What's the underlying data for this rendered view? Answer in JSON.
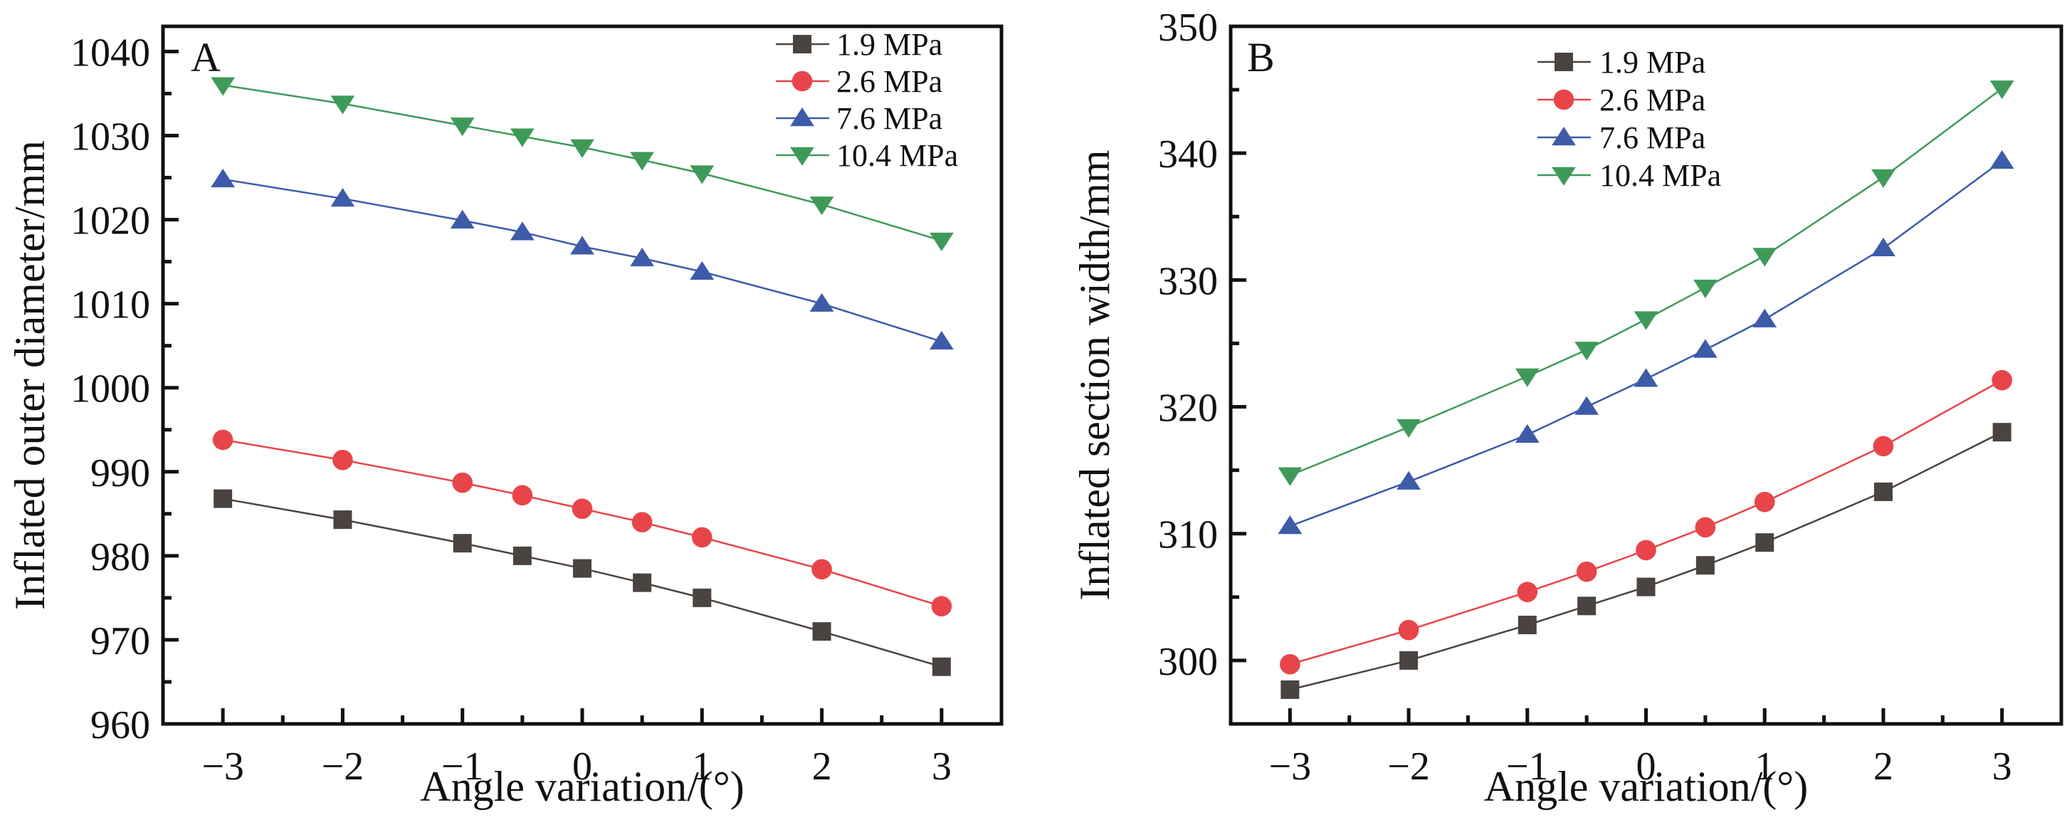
{
  "chart_data": [
    {
      "type": "line",
      "panel_label": "A",
      "title": "",
      "xlabel": "Angle variation/(°)",
      "ylabel": "Inflated outer diameter/mm",
      "x": [
        -3,
        -2,
        -1,
        -0.5,
        0,
        0.5,
        1,
        2,
        3
      ],
      "xlim": [
        -3.5,
        3.5
      ],
      "ylim": [
        960,
        1043
      ],
      "xticks": [
        -3,
        -2,
        -1,
        0,
        1,
        2,
        3
      ],
      "xtick_labels": [
        "−3",
        "−2",
        "−1",
        "0",
        "1",
        "2",
        "3"
      ],
      "yticks": [
        960,
        970,
        980,
        990,
        1000,
        1010,
        1020,
        1030,
        1040
      ],
      "ytick_labels": [
        "960",
        "970",
        "980",
        "990",
        "1000",
        "1010",
        "1020",
        "1030",
        "1040"
      ],
      "grid": false,
      "legend_position": "top-right",
      "series": [
        {
          "name": "1.9 MPa",
          "marker": "square",
          "color": "#4a4340",
          "values": [
            986.8,
            984.3,
            981.5,
            980.0,
            978.5,
            976.8,
            975.0,
            971.0,
            966.8
          ]
        },
        {
          "name": "2.6 MPa",
          "marker": "circle",
          "color": "#e8454a",
          "values": [
            993.8,
            991.4,
            988.7,
            987.2,
            985.6,
            984.0,
            982.2,
            978.4,
            974.0
          ]
        },
        {
          "name": "7.6 MPa",
          "marker": "triangle-up",
          "color": "#3d5ba8",
          "values": [
            1024.8,
            1022.5,
            1019.9,
            1018.5,
            1016.8,
            1015.4,
            1013.8,
            1010.0,
            1005.5
          ]
        },
        {
          "name": "10.4 MPa",
          "marker": "triangle-down",
          "color": "#3f9a5a",
          "values": [
            1036.0,
            1033.8,
            1031.2,
            1029.9,
            1028.6,
            1027.1,
            1025.5,
            1021.8,
            1017.5
          ]
        }
      ]
    },
    {
      "type": "line",
      "panel_label": "B",
      "title": "",
      "xlabel": "Angle variation/(°)",
      "ylabel": "Inflated section width/mm",
      "x": [
        -3,
        -2,
        -1,
        -0.5,
        0,
        0.5,
        1,
        2,
        3
      ],
      "xlim": [
        -3.5,
        3.5
      ],
      "ylim": [
        295,
        350
      ],
      "xticks": [
        -3,
        -2,
        -1,
        0,
        1,
        2,
        3
      ],
      "xtick_labels": [
        "−3",
        "−2",
        "−1",
        "0",
        "1",
        "2",
        "3"
      ],
      "yticks": [
        300,
        310,
        320,
        330,
        340,
        350
      ],
      "ytick_labels": [
        "300",
        "310",
        "320",
        "330",
        "340",
        "350"
      ],
      "grid": false,
      "legend_position": "top-center",
      "series": [
        {
          "name": "1.9 MPa",
          "marker": "square",
          "color": "#4a4340",
          "values": [
            297.7,
            300.0,
            302.8,
            304.3,
            305.8,
            307.5,
            309.3,
            313.3,
            318.0
          ]
        },
        {
          "name": "2.6 MPa",
          "marker": "circle",
          "color": "#e8454a",
          "values": [
            299.7,
            302.4,
            305.4,
            307.0,
            308.7,
            310.5,
            312.5,
            316.9,
            322.1
          ]
        },
        {
          "name": "7.6 MPa",
          "marker": "triangle-up",
          "color": "#3d5ba8",
          "values": [
            310.6,
            314.1,
            317.8,
            320.0,
            322.2,
            324.5,
            326.9,
            332.5,
            339.4
          ]
        },
        {
          "name": "10.4 MPa",
          "marker": "triangle-down",
          "color": "#3f9a5a",
          "values": [
            314.6,
            318.4,
            322.4,
            324.5,
            326.9,
            329.4,
            331.9,
            338.1,
            345.1
          ]
        }
      ]
    }
  ]
}
